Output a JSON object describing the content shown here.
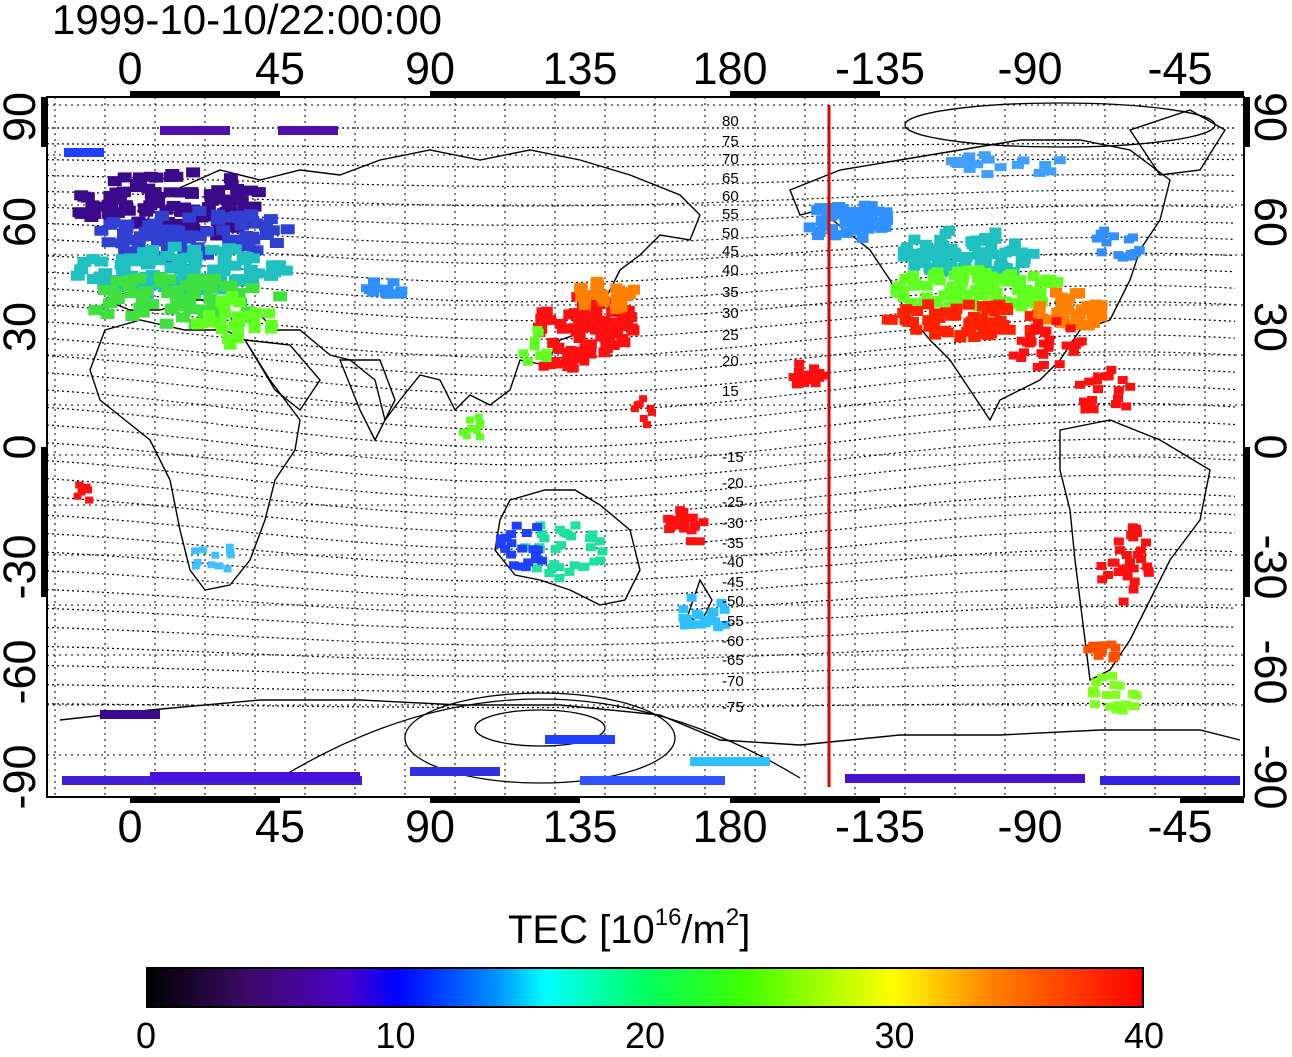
{
  "map": {
    "timestamp": "1999-10-10/22:00:00",
    "top_lon_labels": [
      "0",
      "45",
      "90",
      "135",
      "180",
      "-135",
      "-90",
      "-45"
    ],
    "bottom_lon_labels": [
      "0",
      "45",
      "90",
      "135",
      "180",
      "-135",
      "-90",
      "-45"
    ],
    "left_lat_labels": [
      "90",
      "60",
      "30",
      "0",
      "-30",
      "-60",
      "-90"
    ],
    "right_lat_labels": [
      "90",
      "60",
      "30",
      "0",
      "-30",
      "-60",
      "-90"
    ],
    "contour_labels": [
      "80",
      "75",
      "70",
      "65",
      "60",
      "55",
      "50",
      "45",
      "40",
      "35",
      "30",
      "25",
      "20",
      "15",
      "-15",
      "-20",
      "-25",
      "-30",
      "-35",
      "-40",
      "-45",
      "-50",
      "-55",
      "-60",
      "-65",
      "-70",
      "-75"
    ],
    "terminator_line": {
      "color": "#e00000",
      "longitude": -155
    },
    "colors": {
      "high_tec": "#ff0000",
      "mid_tec": "#40ff00",
      "low_tec": "#0000ff"
    }
  },
  "colorbar": {
    "title": "TEC  [10",
    "title_exp": "16",
    "title_mid": "/m",
    "title_exp2": "2",
    "title_end": "]",
    "tick_labels": [
      "0",
      "10",
      "20",
      "30",
      "40"
    ],
    "range": [
      0,
      40
    ]
  }
}
